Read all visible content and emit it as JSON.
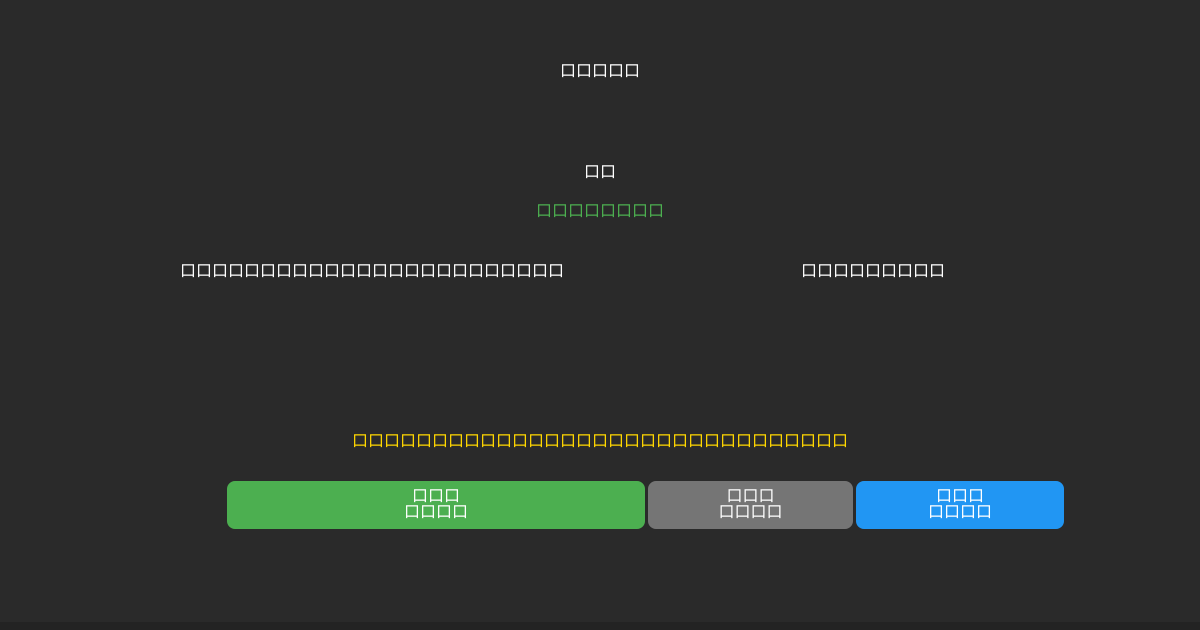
{
  "page": {
    "background_color": "#2a2a2a",
    "footer_strip_color": "#232323",
    "note": "All text renders as missing-glyph (tofu) boxes; CJK glyph font not available in source screenshot"
  },
  "header": {
    "title": "口口口口口"
  },
  "main": {
    "heading": "口口",
    "link": {
      "label": "口口口口口口口口",
      "color": "#4caf50"
    },
    "info_row": {
      "left_text": "口口口口口口口口口口口口口口口口口口口口口口口口",
      "right_text": "口口口口口口口口口"
    },
    "warning": {
      "text": "口口口口口口口口口口口口口口口口口口口口口口口口口口口口口口口",
      "color": "#ffd700"
    }
  },
  "buttons": [
    {
      "label_line1": "口口口",
      "label_line2": "口口口口",
      "color": "#4caf50",
      "text_color": "#ffffff"
    },
    {
      "label_line1": "口口口",
      "label_line2": "口口口口",
      "color": "#757575",
      "text_color": "#ffffff"
    },
    {
      "label_line1": "口口口",
      "label_line2": "口口口口",
      "color": "#2196f3",
      "text_color": "#ffffff"
    }
  ]
}
